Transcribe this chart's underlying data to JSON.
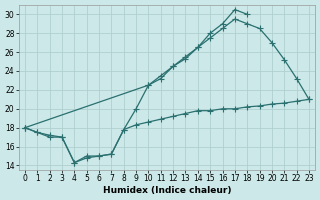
{
  "xlabel": "Humidex (Indice chaleur)",
  "bg_color": "#cce8e8",
  "line_color": "#2a7070",
  "grid_color": "#b0d0d0",
  "xlim": [
    -0.5,
    23.5
  ],
  "ylim": [
    13.5,
    31.0
  ],
  "xticks": [
    0,
    1,
    2,
    3,
    4,
    5,
    6,
    7,
    8,
    9,
    10,
    11,
    12,
    13,
    14,
    15,
    16,
    17,
    18,
    19,
    20,
    21,
    22,
    23
  ],
  "yticks": [
    14,
    16,
    18,
    20,
    22,
    24,
    26,
    28,
    30
  ],
  "s1_x": [
    0,
    1,
    2,
    3,
    4,
    5,
    6,
    7,
    8,
    9,
    10,
    11,
    12,
    13,
    14,
    15,
    16,
    17,
    18
  ],
  "s1_y": [
    18.0,
    17.5,
    17.0,
    17.0,
    14.3,
    15.0,
    15.0,
    15.2,
    17.8,
    20.0,
    22.5,
    23.2,
    24.5,
    25.3,
    26.5,
    28.0,
    29.0,
    30.5,
    30.0
  ],
  "s2_x": [
    0,
    10,
    11,
    12,
    13,
    14,
    15,
    16,
    17,
    18,
    19,
    20,
    21,
    22,
    23
  ],
  "s2_y": [
    18.0,
    22.5,
    23.5,
    24.5,
    25.5,
    26.5,
    27.5,
    28.5,
    29.5,
    29.0,
    28.5,
    27.0,
    25.2,
    23.2,
    21.0
  ],
  "s3_x": [
    0,
    1,
    2,
    3,
    4,
    5,
    6,
    7,
    8,
    9,
    10,
    11,
    12,
    13,
    14,
    15,
    16,
    17,
    18,
    19,
    20,
    21,
    22,
    23
  ],
  "s3_y": [
    18.0,
    17.5,
    17.2,
    17.0,
    14.3,
    14.8,
    15.0,
    15.2,
    17.8,
    18.3,
    18.6,
    18.9,
    19.2,
    19.5,
    19.8,
    19.8,
    20.0,
    20.0,
    20.2,
    20.3,
    20.5,
    20.6,
    20.8,
    21.0
  ]
}
